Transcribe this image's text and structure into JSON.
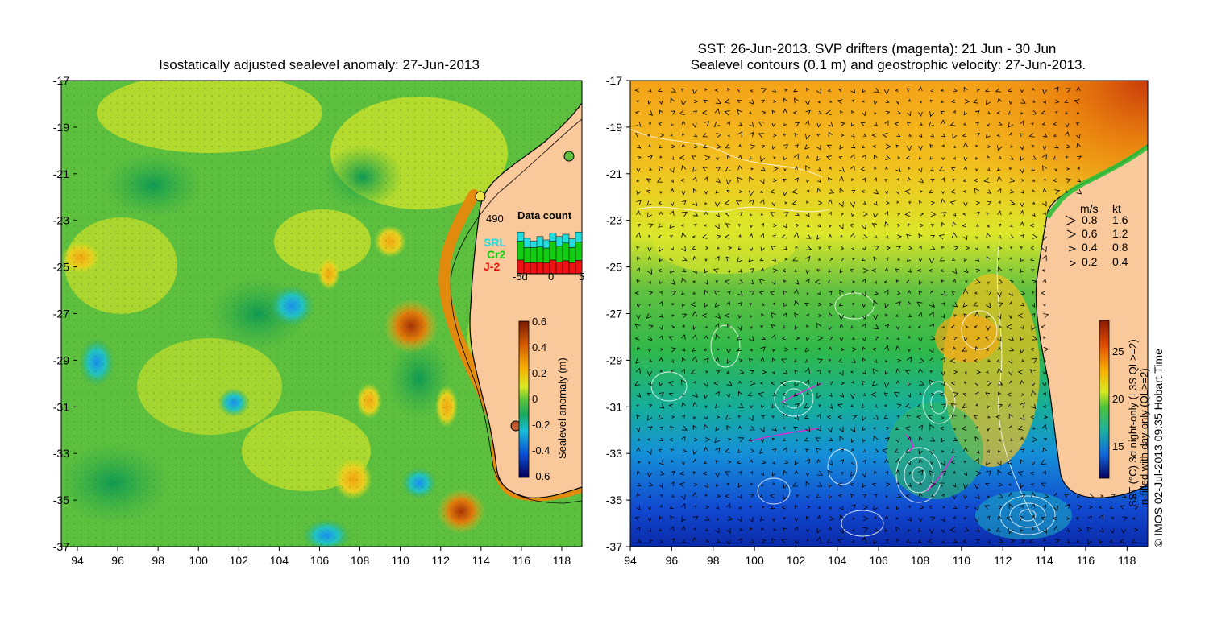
{
  "colors": {
    "land": "#f9c89b",
    "coast": "#000000",
    "white": "#ffffff",
    "srl": "#22dddd",
    "cr2": "#11cc11",
    "j2": "#ee1111"
  },
  "left_map": {
    "title": "Isostatically adjusted sealevel anomaly: 27-Jun-2013",
    "x_ticks": [
      "94",
      "96",
      "98",
      "100",
      "102",
      "104",
      "106",
      "108",
      "110",
      "112",
      "114",
      "116",
      "118"
    ],
    "y_ticks": [
      "-17",
      "-19",
      "-21",
      "-23",
      "-25",
      "-27",
      "-29",
      "-31",
      "-33",
      "-35",
      "-37"
    ],
    "inset": {
      "count": "490",
      "title": "Data count",
      "legend": [
        "SRL",
        "Cr2",
        "J-2"
      ],
      "x_ticks": [
        "-5d",
        "0",
        "5"
      ],
      "bars_total": [
        0.74,
        0.63,
        0.58,
        0.66,
        0.6,
        0.72,
        0.66,
        0.7,
        0.62,
        0.74
      ],
      "bars_srl_frac": [
        0.22,
        0.26,
        0.2,
        0.28,
        0.24,
        0.2,
        0.26,
        0.22,
        0.25,
        0.24
      ]
    },
    "colorbar": {
      "label": "Sealevel anomaly (m)",
      "ticks": [
        "0.6",
        "0.4",
        "0.2",
        "0",
        "-0.2",
        "-0.4",
        "-0.6"
      ]
    }
  },
  "right_map": {
    "title_line1": "SST: 26-Jun-2013. SVP drifters (magenta): 21 Jun - 30 Jun",
    "title_line2": "Sealevel contours (0.1 m) and geostrophic velocity: 27-Jun-2013.",
    "x_ticks": [
      "94",
      "96",
      "98",
      "100",
      "102",
      "104",
      "106",
      "108",
      "110",
      "112",
      "114",
      "116",
      "118"
    ],
    "y_ticks": [
      "-17",
      "-19",
      "-21",
      "-23",
      "-25",
      "-27",
      "-29",
      "-31",
      "-33",
      "-35",
      "-37"
    ],
    "vector_legend": {
      "header_ms": "m/s",
      "header_kt": "kt",
      "rows": [
        {
          "ms": "0.8",
          "kt": "1.6"
        },
        {
          "ms": "0.6",
          "kt": "1.2"
        },
        {
          "ms": "0.4",
          "kt": "0.8"
        },
        {
          "ms": "0.2",
          "kt": "0.4"
        }
      ]
    },
    "colorbar": {
      "ticks": [
        "25",
        "20",
        "15"
      ],
      "label_line1": "SST (°C) 3d night-only (L3S QL>=2)",
      "label_line2": "in-filled with day-only (QL>=2)"
    },
    "credit": "© IMOS 02-Jul-2013 09:35 Hobart Time"
  }
}
